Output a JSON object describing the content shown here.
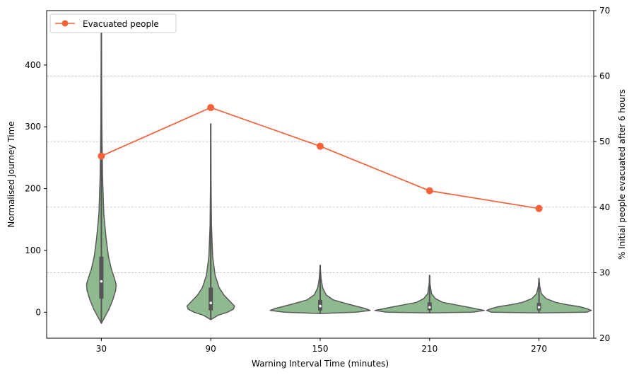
{
  "chart_data": {
    "type": "violin+line",
    "xlabel": "Warning Interval Time (minutes)",
    "ylabel_left": "Normalised Journey Time",
    "ylabel_right": "% Initial people evacuated after 6 hours",
    "categories": [
      "30",
      "90",
      "150",
      "210",
      "270"
    ],
    "ylim_left": [
      -42,
      488
    ],
    "yticks_left": [
      0,
      100,
      200,
      300,
      400
    ],
    "ylim_right": [
      20,
      70
    ],
    "yticks_right": [
      20,
      30,
      40,
      50,
      60,
      70
    ],
    "grid": "right-axis horizontal dashed",
    "legend": {
      "position": "top-left",
      "entries": [
        "Evacuated people"
      ]
    },
    "colors": {
      "violin_fill": "#8fba8f",
      "violin_edge": "#5a5a5a",
      "line": "#f4623a"
    },
    "violins": [
      {
        "category": "30",
        "min": -18,
        "max": 465,
        "q1": 22,
        "median": 50,
        "q3": 90,
        "profile": [
          [
            -18,
            0.0
          ],
          [
            -8,
            0.14
          ],
          [
            5,
            0.32
          ],
          [
            20,
            0.48
          ],
          [
            35,
            0.6
          ],
          [
            45,
            0.62
          ],
          [
            55,
            0.55
          ],
          [
            70,
            0.42
          ],
          [
            90,
            0.3
          ],
          [
            120,
            0.2
          ],
          [
            160,
            0.1
          ],
          [
            220,
            0.05
          ],
          [
            300,
            0.02
          ],
          [
            400,
            0.01
          ],
          [
            465,
            0.0
          ]
        ]
      },
      {
        "category": "90",
        "min": -12,
        "max": 305,
        "q1": 3,
        "median": 15,
        "q3": 40,
        "profile": [
          [
            -12,
            0.0
          ],
          [
            -5,
            0.3
          ],
          [
            0,
            0.7
          ],
          [
            5,
            0.95
          ],
          [
            10,
            1.0
          ],
          [
            18,
            0.8
          ],
          [
            28,
            0.55
          ],
          [
            40,
            0.35
          ],
          [
            60,
            0.18
          ],
          [
            90,
            0.08
          ],
          [
            140,
            0.03
          ],
          [
            220,
            0.01
          ],
          [
            305,
            0.0
          ]
        ]
      },
      {
        "category": "150",
        "min": -2,
        "max": 76,
        "q1": 3,
        "median": 10,
        "q3": 20,
        "profile": [
          [
            -2,
            0.0
          ],
          [
            0,
            1.5
          ],
          [
            3,
            2.1
          ],
          [
            6,
            1.9
          ],
          [
            10,
            1.5
          ],
          [
            14,
            1.1
          ],
          [
            20,
            0.55
          ],
          [
            28,
            0.25
          ],
          [
            40,
            0.1
          ],
          [
            55,
            0.04
          ],
          [
            76,
            0.0
          ]
        ]
      },
      {
        "category": "210",
        "min": -1,
        "max": 60,
        "q1": 3,
        "median": 8,
        "q3": 16,
        "profile": [
          [
            -1,
            0.0
          ],
          [
            0,
            1.8
          ],
          [
            3,
            2.3
          ],
          [
            6,
            1.9
          ],
          [
            9,
            1.5
          ],
          [
            12,
            1.1
          ],
          [
            16,
            0.55
          ],
          [
            22,
            0.25
          ],
          [
            30,
            0.08
          ],
          [
            45,
            0.02
          ],
          [
            60,
            0.0
          ]
        ]
      },
      {
        "category": "270",
        "min": -1,
        "max": 55,
        "q1": 3,
        "median": 8,
        "q3": 15,
        "profile": [
          [
            -1,
            0.0
          ],
          [
            0,
            2.0
          ],
          [
            3,
            2.2
          ],
          [
            6,
            2.0
          ],
          [
            9,
            1.7
          ],
          [
            12,
            1.2
          ],
          [
            16,
            0.7
          ],
          [
            22,
            0.3
          ],
          [
            30,
            0.1
          ],
          [
            42,
            0.03
          ],
          [
            55,
            0.0
          ]
        ]
      }
    ],
    "series": [
      {
        "name": "Evacuated people",
        "axis": "right",
        "values": [
          47.8,
          55.2,
          49.3,
          42.5,
          39.8
        ]
      }
    ]
  }
}
